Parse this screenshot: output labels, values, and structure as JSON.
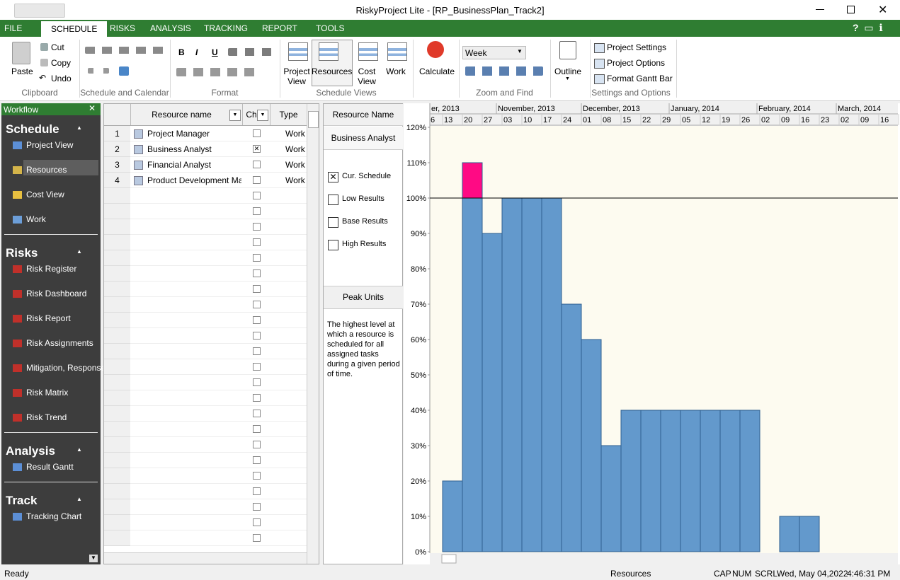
{
  "window": {
    "title": "RiskyProject Lite - [RP_BusinessPlan_Track2]"
  },
  "ribbon": {
    "tabs": [
      "FILE",
      "SCHEDULE",
      "RISKS",
      "ANALYSIS",
      "TRACKING",
      "REPORT",
      "TOOLS"
    ],
    "clipboard": {
      "label": "Clipboard",
      "paste": "Paste",
      "cut": "Cut",
      "copy": "Copy",
      "undo": "Undo"
    },
    "schedule_calendar": {
      "label": "Schedule and Calendar"
    },
    "format": {
      "label": "Format",
      "bold": "B",
      "italic": "I",
      "underline": "U"
    },
    "schedule_views": {
      "label": "Schedule Views",
      "buttons": [
        "Project View",
        "Resources",
        "Cost View",
        "Work"
      ]
    },
    "calculate": "Calculate",
    "zoom_find": {
      "label": "Zoom and Find",
      "scale": "Week"
    },
    "outline": "Outline",
    "settings": {
      "label": "Settings and Options",
      "buttons": [
        "Project Settings",
        "Project Options",
        "Format Gantt Bar"
      ]
    }
  },
  "workflow": {
    "title": "Workflow",
    "sections": [
      {
        "title": "Schedule",
        "items": [
          "Project View",
          "Resources",
          "Cost View",
          "Work"
        ]
      },
      {
        "title": "Risks",
        "items": [
          "Risk Register",
          "Risk Dashboard",
          "Risk Report",
          "Risk Assignments",
          "Mitigation, Response",
          "Risk Matrix",
          "Risk Trend"
        ]
      },
      {
        "title": "Analysis",
        "items": [
          "Result Gantt"
        ]
      },
      {
        "title": "Track",
        "items": [
          "Tracking Chart"
        ]
      }
    ]
  },
  "resource_table": {
    "columns": [
      "Resource name",
      "Ch",
      "Type"
    ],
    "rows": [
      [
        "1",
        "Project Manager",
        false,
        "Work"
      ],
      [
        "2",
        "Business Analyst",
        true,
        "Work"
      ],
      [
        "3",
        "Financial Analyst",
        false,
        "Work"
      ],
      [
        "4",
        "Product Development Mana",
        false,
        "Work"
      ]
    ]
  },
  "legend_panel": {
    "header": "Resource Name",
    "resource": "Business Analyst",
    "options": [
      {
        "label": "Cur. Schedule",
        "checked": true
      },
      {
        "label": "Low Results",
        "checked": false
      },
      {
        "label": "Base Results",
        "checked": false
      },
      {
        "label": "High Results",
        "checked": false
      }
    ],
    "info_title": "Peak Units",
    "info_text": "The highest level at which a resource is scheduled for all assigned tasks during a given period of time."
  },
  "chart_data": {
    "type": "bar",
    "stacked": true,
    "months": [
      "er, 2013",
      "November, 2013",
      "December, 2013",
      "January, 2014",
      "February, 2014",
      "March, 2014"
    ],
    "categories": [
      "6",
      "13",
      "20",
      "27",
      "03",
      "10",
      "17",
      "24",
      "01",
      "08",
      "15",
      "22",
      "29",
      "05",
      "12",
      "19",
      "26",
      "02",
      "09",
      "16",
      "23",
      "02",
      "09",
      "16"
    ],
    "series": [
      {
        "color": "#6399cc",
        "values": [
          0,
          20,
          100,
          90,
          100,
          100,
          100,
          70,
          60,
          30,
          40,
          40,
          40,
          40,
          40,
          40,
          40,
          0,
          10,
          10,
          0,
          0,
          0,
          0
        ]
      },
      {
        "color": "#ff0a84",
        "values": [
          0,
          0,
          10,
          0,
          0,
          0,
          0,
          0,
          0,
          0,
          0,
          0,
          0,
          0,
          0,
          0,
          0,
          0,
          0,
          0,
          0,
          0,
          0,
          0
        ]
      }
    ],
    "ylim": [
      0,
      120
    ],
    "yticks": [
      {
        "value": 0,
        "label": "0%"
      },
      {
        "value": 10,
        "label": "10%"
      },
      {
        "value": 20,
        "label": "20%"
      },
      {
        "value": 30,
        "label": "30%"
      },
      {
        "value": 40,
        "label": "40%"
      },
      {
        "value": 50,
        "label": "50%"
      },
      {
        "value": 60,
        "label": "60%"
      },
      {
        "value": 70,
        "label": "70%"
      },
      {
        "value": 80,
        "label": "80%"
      },
      {
        "value": 90,
        "label": "90%"
      },
      {
        "value": 100,
        "label": "100%"
      },
      {
        "value": 110,
        "label": "110%"
      },
      {
        "value": 120,
        "label": "120%"
      }
    ],
    "reference_line": 100
  },
  "status_bar": {
    "left": "Ready",
    "view": "Resources",
    "indicators": [
      "CAP",
      "NUM",
      "SCRL"
    ],
    "date": "Wed, May 04,2022",
    "time": "4:46:31 PM"
  }
}
